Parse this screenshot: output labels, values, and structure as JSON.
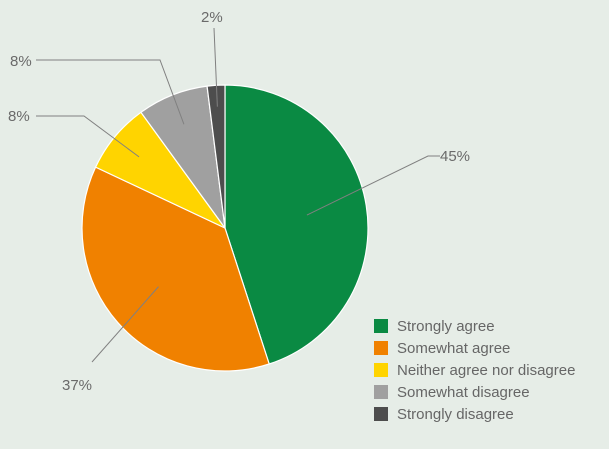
{
  "chart_data": {
    "type": "pie",
    "title": "",
    "categories": [
      "Strongly agree",
      "Somewhat agree",
      "Neither agree nor disagree",
      "Somewhat disagree",
      "Strongly disagree"
    ],
    "values": [
      45,
      37,
      8,
      8,
      2
    ],
    "labels": [
      "45%",
      "37%",
      "8%",
      "8%",
      "2%"
    ],
    "colors": [
      "#0a8a43",
      "#f08100",
      "#ffd400",
      "#a0a0a0",
      "#4d4d4d"
    ],
    "legend_placement": "bottom-right"
  }
}
